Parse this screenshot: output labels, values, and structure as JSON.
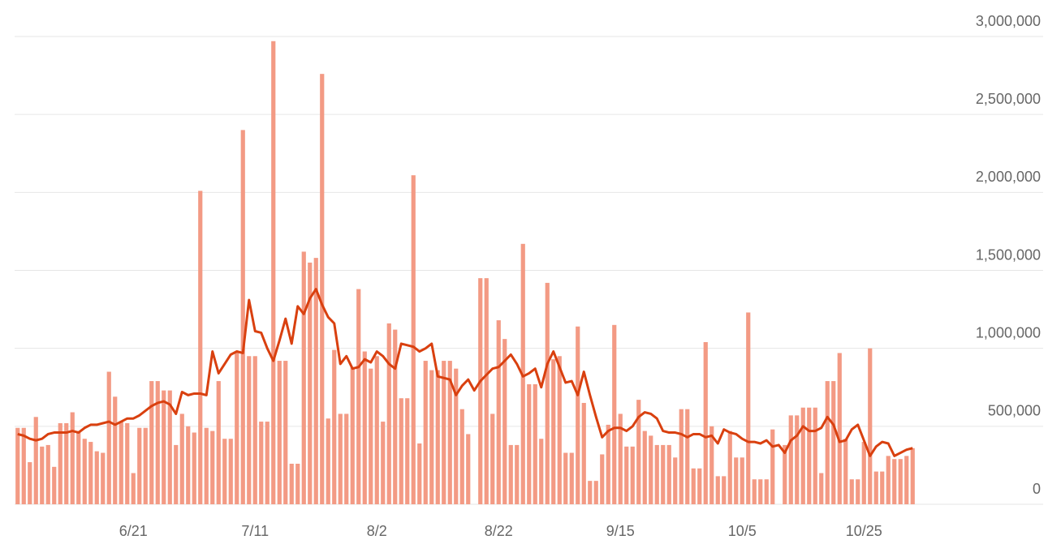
{
  "chart_data": {
    "type": "bar",
    "categories": [
      null,
      null,
      null,
      null,
      null,
      null,
      null,
      null,
      null,
      null,
      null,
      null,
      null,
      null,
      null,
      null,
      null,
      null,
      null,
      "6/21",
      null,
      null,
      null,
      null,
      null,
      null,
      null,
      null,
      null,
      null,
      null,
      null,
      null,
      null,
      null,
      null,
      null,
      null,
      null,
      "7/11",
      null,
      null,
      null,
      null,
      null,
      null,
      null,
      null,
      null,
      null,
      null,
      null,
      null,
      null,
      null,
      null,
      null,
      null,
      null,
      "8/2",
      null,
      null,
      null,
      null,
      null,
      null,
      null,
      null,
      null,
      null,
      null,
      null,
      null,
      null,
      null,
      null,
      null,
      null,
      null,
      "8/22",
      null,
      null,
      null,
      null,
      null,
      null,
      null,
      null,
      null,
      null,
      null,
      null,
      null,
      null,
      null,
      null,
      null,
      null,
      null,
      "9/15",
      null,
      null,
      null,
      null,
      null,
      null,
      null,
      null,
      null,
      null,
      null,
      null,
      null,
      null,
      null,
      null,
      null,
      null,
      null,
      "10/5",
      null,
      null,
      null,
      null,
      null,
      null,
      null,
      null,
      null,
      null,
      null,
      null,
      null,
      null,
      null,
      null,
      null,
      null,
      null,
      "10/25",
      null,
      null,
      null,
      null,
      null,
      null,
      null,
      null
    ],
    "series": [
      {
        "type": "bar",
        "color": "#f39a84",
        "values": [
          490000,
          490000,
          270000,
          560000,
          370000,
          380000,
          240000,
          520000,
          520000,
          590000,
          470000,
          420000,
          400000,
          340000,
          330000,
          850000,
          690000,
          530000,
          520000,
          200000,
          490000,
          490000,
          790000,
          790000,
          730000,
          730000,
          380000,
          580000,
          500000,
          460000,
          2010000,
          490000,
          470000,
          790000,
          420000,
          420000,
          980000,
          2400000,
          950000,
          950000,
          530000,
          530000,
          2970000,
          920000,
          920000,
          260000,
          260000,
          1620000,
          1550000,
          1580000,
          2760000,
          550000,
          990000,
          580000,
          580000,
          880000,
          1380000,
          980000,
          870000,
          950000,
          530000,
          1160000,
          1120000,
          680000,
          680000,
          2110000,
          390000,
          920000,
          860000,
          860000,
          920000,
          920000,
          870000,
          610000,
          450000,
          0,
          1450000,
          1450000,
          580000,
          1180000,
          1060000,
          380000,
          380000,
          1670000,
          770000,
          770000,
          420000,
          1420000,
          930000,
          950000,
          330000,
          330000,
          1140000,
          650000,
          150000,
          150000,
          320000,
          510000,
          1150000,
          580000,
          370000,
          370000,
          670000,
          470000,
          440000,
          380000,
          380000,
          380000,
          300000,
          610000,
          610000,
          230000,
          230000,
          1040000,
          500000,
          180000,
          180000,
          470000,
          300000,
          300000,
          1230000,
          160000,
          160000,
          160000,
          480000,
          0,
          380000,
          570000,
          570000,
          620000,
          620000,
          620000,
          200000,
          790000,
          790000,
          970000,
          420000,
          160000,
          160000,
          400000,
          1000000,
          210000,
          210000,
          310000,
          290000,
          290000,
          310000,
          360000
        ]
      },
      {
        "type": "line",
        "color": "#d9400f",
        "values": [
          450000,
          440000,
          420000,
          410000,
          420000,
          450000,
          460000,
          460000,
          460000,
          470000,
          460000,
          490000,
          510000,
          510000,
          520000,
          530000,
          510000,
          530000,
          550000,
          550000,
          570000,
          600000,
          630000,
          650000,
          660000,
          640000,
          580000,
          720000,
          700000,
          710000,
          710000,
          700000,
          980000,
          840000,
          900000,
          960000,
          980000,
          970000,
          1310000,
          1110000,
          1100000,
          1000000,
          920000,
          1050000,
          1190000,
          1030000,
          1270000,
          1220000,
          1320000,
          1380000,
          1280000,
          1200000,
          1160000,
          900000,
          950000,
          870000,
          880000,
          930000,
          910000,
          980000,
          950000,
          900000,
          870000,
          1030000,
          1020000,
          1010000,
          980000,
          1000000,
          1030000,
          820000,
          810000,
          800000,
          700000,
          760000,
          800000,
          730000,
          790000,
          830000,
          870000,
          880000,
          920000,
          960000,
          900000,
          820000,
          840000,
          870000,
          750000,
          900000,
          980000,
          880000,
          780000,
          790000,
          700000,
          850000,
          700000,
          560000,
          430000,
          470000,
          490000,
          490000,
          470000,
          500000,
          560000,
          590000,
          580000,
          550000,
          470000,
          460000,
          460000,
          450000,
          430000,
          450000,
          450000,
          430000,
          440000,
          390000,
          480000,
          460000,
          450000,
          420000,
          400000,
          400000,
          390000,
          410000,
          370000,
          380000,
          330000,
          410000,
          440000,
          500000,
          470000,
          470000,
          490000,
          560000,
          510000,
          400000,
          410000,
          480000,
          510000,
          410000,
          310000,
          370000,
          400000,
          390000,
          310000,
          330000,
          350000,
          360000
        ]
      }
    ],
    "ylim": [
      0,
      3000000
    ],
    "yticks": [
      0,
      {
        "value": 500000,
        "label": "500,000"
      },
      {
        "value": 1000000,
        "label": "1,000,000"
      },
      {
        "value": 1500000,
        "label": "1,500,000"
      },
      {
        "value": 2000000,
        "label": "2,000,000"
      },
      {
        "value": 2500000,
        "label": "2,500,000"
      },
      {
        "value": 3000000,
        "label": "3,000,000"
      }
    ],
    "grid": true
  }
}
